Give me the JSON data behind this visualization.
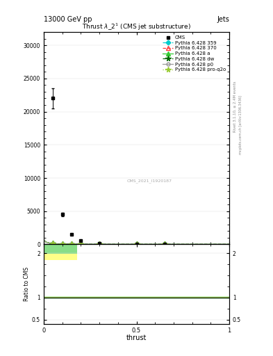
{
  "header_left": "13000 GeV pp",
  "header_right": "Jets",
  "plot_title": "Thrust $\\lambda\\_2^1$ (CMS jet substructure)",
  "xlabel": "thrust",
  "ylabel_ratio": "Ratio to CMS",
  "watermark": "CMS_2021_I1920187",
  "bg_color": "#ffffff",
  "plot_bg": "#ffffff",
  "color_359": "#00cccc",
  "color_370": "#ff3333",
  "color_a": "#33cc33",
  "color_dw": "#006600",
  "color_p0": "#999999",
  "color_proq2o": "#99cc33",
  "ratio_band_yellow": "#ffff88",
  "ratio_band_green": "#88dd88",
  "ratio_line_color": "#aade44",
  "ylim_main": [
    0,
    32000
  ],
  "ylim_ratio": [
    0.4,
    2.2
  ],
  "xlim": [
    0,
    1.0
  ],
  "yticks_main": [
    0,
    5000,
    10000,
    15000,
    20000,
    25000,
    30000
  ],
  "ytick_labels_main": [
    "0",
    "5000",
    "10000",
    "15000",
    "20000",
    "25000",
    "30000"
  ],
  "yticks_ratio": [
    0.5,
    1.0,
    2.0
  ],
  "ytick_labels_ratio": [
    "0.5",
    "1",
    "2"
  ],
  "xticks": [
    0.0,
    0.5,
    1.0
  ],
  "xtick_labels": [
    "0",
    "0.5",
    "1"
  ]
}
